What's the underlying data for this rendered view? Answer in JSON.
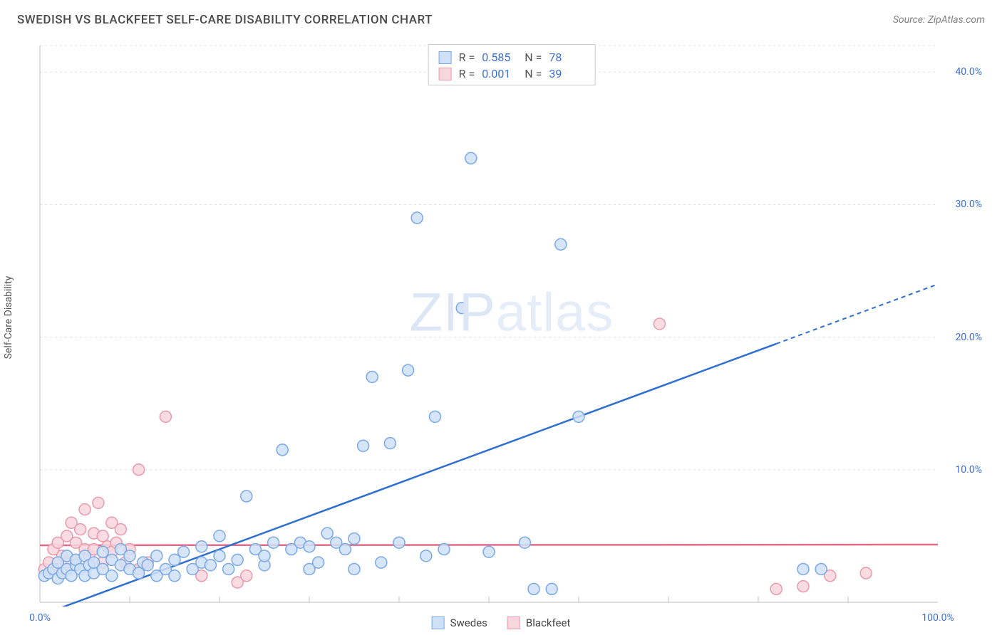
{
  "title": "SWEDISH VS BLACKFEET SELF-CARE DISABILITY CORRELATION CHART",
  "source": "Source: ZipAtlas.com",
  "ylabel": "Self-Care Disability",
  "watermark_bold": "ZIP",
  "watermark_thin": "atlas",
  "chart": {
    "type": "scatter",
    "xlim": [
      0,
      100
    ],
    "ylim": [
      0,
      42
    ],
    "x_ticks_major": [
      0,
      100
    ],
    "x_ticks_minor": [
      10,
      20,
      30,
      40,
      50,
      60,
      70,
      80,
      90
    ],
    "y_ticks": [
      10,
      20,
      30,
      40
    ],
    "x_tick_labels": [
      "0.0%",
      "100.0%"
    ],
    "y_tick_labels": [
      "10.0%",
      "20.0%",
      "30.0%",
      "40.0%"
    ],
    "background_color": "#ffffff",
    "grid_color": "#dddddd",
    "axis_color": "#bfbfbf",
    "marker_radius": 8,
    "marker_stroke_width": 1.5,
    "series": [
      {
        "name": "Swedes",
        "color_fill": "#cfe0f7",
        "color_stroke": "#7ba8e6",
        "trend_color": "#2f6fd0",
        "trend_y0": -1.0,
        "trend_y100": 24.0,
        "trend_solid_until_x": 82,
        "r": "0.585",
        "n": "78",
        "points": [
          [
            0.5,
            2.0
          ],
          [
            1,
            2.2
          ],
          [
            1.5,
            2.5
          ],
          [
            2,
            1.8
          ],
          [
            2,
            3.0
          ],
          [
            2.5,
            2.2
          ],
          [
            3,
            2.5
          ],
          [
            3,
            3.5
          ],
          [
            3.5,
            2.0
          ],
          [
            4,
            2.8
          ],
          [
            4,
            3.2
          ],
          [
            4.5,
            2.5
          ],
          [
            5,
            2.0
          ],
          [
            5,
            3.5
          ],
          [
            5.5,
            2.8
          ],
          [
            6,
            2.2
          ],
          [
            6,
            3.0
          ],
          [
            7,
            2.5
          ],
          [
            7,
            3.8
          ],
          [
            8,
            2.0
          ],
          [
            8,
            3.2
          ],
          [
            9,
            2.8
          ],
          [
            9,
            4.0
          ],
          [
            10,
            2.5
          ],
          [
            10,
            3.5
          ],
          [
            11,
            2.2
          ],
          [
            11.5,
            3.0
          ],
          [
            12,
            2.8
          ],
          [
            13,
            2.0
          ],
          [
            13,
            3.5
          ],
          [
            14,
            2.5
          ],
          [
            15,
            3.2
          ],
          [
            15,
            2.0
          ],
          [
            16,
            3.8
          ],
          [
            17,
            2.5
          ],
          [
            18,
            3.0
          ],
          [
            18,
            4.2
          ],
          [
            19,
            2.8
          ],
          [
            20,
            3.5
          ],
          [
            20,
            5.0
          ],
          [
            21,
            2.5
          ],
          [
            22,
            3.2
          ],
          [
            23,
            8.0
          ],
          [
            24,
            4.0
          ],
          [
            25,
            2.8
          ],
          [
            25,
            3.5
          ],
          [
            26,
            4.5
          ],
          [
            27,
            11.5
          ],
          [
            28,
            4.0
          ],
          [
            29,
            4.5
          ],
          [
            30,
            2.5
          ],
          [
            30,
            4.2
          ],
          [
            31,
            3.0
          ],
          [
            32,
            5.2
          ],
          [
            33,
            4.5
          ],
          [
            34,
            4.0
          ],
          [
            35,
            2.5
          ],
          [
            35,
            4.8
          ],
          [
            36,
            11.8
          ],
          [
            37,
            17.0
          ],
          [
            38,
            3.0
          ],
          [
            39,
            12.0
          ],
          [
            40,
            4.5
          ],
          [
            41,
            17.5
          ],
          [
            42,
            29.0
          ],
          [
            43,
            3.5
          ],
          [
            44,
            14.0
          ],
          [
            45,
            4.0
          ],
          [
            47,
            22.2
          ],
          [
            48,
            33.5
          ],
          [
            50,
            3.8
          ],
          [
            54,
            4.5
          ],
          [
            55,
            1.0
          ],
          [
            57,
            1.0
          ],
          [
            58,
            27.0
          ],
          [
            60,
            14.0
          ],
          [
            85,
            2.5
          ],
          [
            87,
            2.5
          ]
        ]
      },
      {
        "name": "Blackfeet",
        "color_fill": "#f8d6dd",
        "color_stroke": "#e89aac",
        "trend_color": "#e46a87",
        "trend_y0": 4.3,
        "trend_y100": 4.35,
        "trend_solid_until_x": 100,
        "r": "0.001",
        "n": "39",
        "points": [
          [
            0.5,
            2.5
          ],
          [
            1,
            3.0
          ],
          [
            1.5,
            4.0
          ],
          [
            2,
            2.5
          ],
          [
            2,
            4.5
          ],
          [
            2.5,
            3.5
          ],
          [
            3,
            5.0
          ],
          [
            3,
            3.0
          ],
          [
            3.5,
            6.0
          ],
          [
            4,
            4.5
          ],
          [
            4,
            3.2
          ],
          [
            4.5,
            5.5
          ],
          [
            5,
            4.0
          ],
          [
            5,
            7.0
          ],
          [
            5.5,
            3.5
          ],
          [
            6,
            5.2
          ],
          [
            6,
            4.0
          ],
          [
            6.5,
            7.5
          ],
          [
            7,
            3.0
          ],
          [
            7,
            5.0
          ],
          [
            7.5,
            4.2
          ],
          [
            8,
            6.0
          ],
          [
            8,
            3.8
          ],
          [
            8.5,
            4.5
          ],
          [
            9,
            5.5
          ],
          [
            9.5,
            3.0
          ],
          [
            10,
            4.0
          ],
          [
            11,
            2.5
          ],
          [
            11,
            10.0
          ],
          [
            12,
            3.0
          ],
          [
            14,
            14.0
          ],
          [
            18,
            2.0
          ],
          [
            22,
            1.5
          ],
          [
            23,
            2.0
          ],
          [
            69,
            21.0
          ],
          [
            82,
            1.0
          ],
          [
            85,
            1.2
          ],
          [
            88,
            2.0
          ],
          [
            92,
            2.2
          ]
        ]
      }
    ]
  },
  "legend": {
    "series1": "Swedes",
    "series2": "Blackfeet"
  }
}
